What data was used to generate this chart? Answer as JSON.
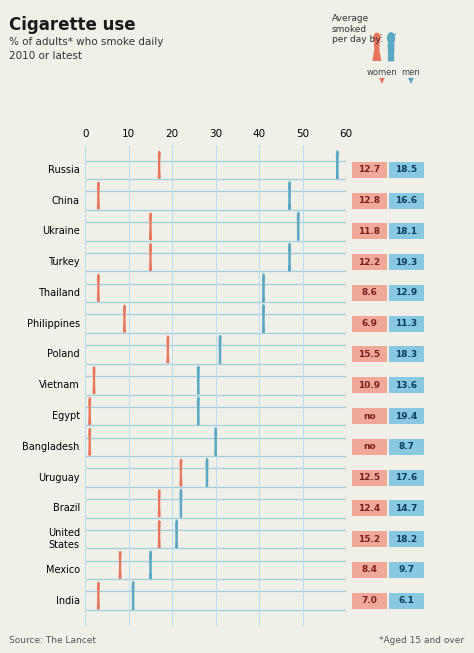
{
  "title": "Cigarette use",
  "subtitle1": "% of adults* who smoke daily",
  "subtitle2": "2010 or latest",
  "countries": [
    "Russia",
    "China",
    "Ukraine",
    "Turkey",
    "Thailand",
    "Philippines",
    "Poland",
    "Vietnam",
    "Egypt",
    "Bangladesh",
    "Uruguay",
    "Brazil",
    "United\nStates",
    "Mexico",
    "India"
  ],
  "women_pct": [
    17,
    3,
    15,
    15,
    3,
    9,
    19,
    2,
    1,
    1,
    22,
    17,
    17,
    8,
    3
  ],
  "men_pct": [
    58,
    47,
    49,
    47,
    41,
    41,
    31,
    26,
    26,
    30,
    28,
    22,
    21,
    15,
    11
  ],
  "women_avg": [
    "12.7",
    "12.8",
    "11.8",
    "12.2",
    "8.6",
    "6.9",
    "15.5",
    "10.9",
    "no",
    "no",
    "12.5",
    "12.4",
    "15.2",
    "8.4",
    "7.0"
  ],
  "men_avg": [
    "18.5",
    "16.6",
    "18.1",
    "19.3",
    "12.9",
    "11.3",
    "18.3",
    "13.6",
    "19.4",
    "8.7",
    "17.6",
    "14.7",
    "18.2",
    "9.7",
    "6.1"
  ],
  "woman_color": "#E8745A",
  "man_color": "#5BA8C4",
  "bg_color": "#F0EFE8",
  "line_color": "#9DCFE0",
  "grid_color": "#B8DFF0",
  "xlim": [
    0,
    60
  ],
  "xticks": [
    0,
    10,
    20,
    30,
    40,
    50,
    60
  ],
  "source": "Source: The Lancet",
  "footnote": "*Aged 15 and over",
  "avg_label": "Average\nsmoked\nper day by:",
  "women_label": "women",
  "men_label": "men",
  "women_box_color": "#F0A898",
  "men_box_color": "#88C8E0"
}
